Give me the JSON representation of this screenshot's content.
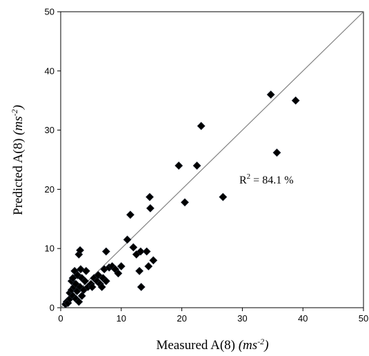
{
  "chart_data": {
    "type": "scatter",
    "title": "",
    "xlabel": {
      "main": "Measured A(8) ",
      "unit": "(ms",
      "exp": "-2",
      "close": ")"
    },
    "ylabel": {
      "main": "Predicted A(8) ",
      "unit": "(ms",
      "exp": "-2",
      "close": ")"
    },
    "xlim": [
      0,
      50
    ],
    "ylim": [
      0,
      50
    ],
    "xticks": [
      "0",
      "10",
      "20",
      "30",
      "40",
      "50"
    ],
    "yticks": [
      "0",
      "10",
      "20",
      "30",
      "40",
      "50"
    ],
    "grid": false,
    "marker": "diamond",
    "marker_color": "#000000",
    "reference_line": {
      "x": [
        0,
        50
      ],
      "y": [
        0,
        50
      ],
      "color": "#808080"
    },
    "annotation": {
      "prefix": "R",
      "sup": "2",
      "suffix": " = 84.1 %",
      "x": 29.5,
      "y": 21
    },
    "points": [
      [
        0.8,
        0.6
      ],
      [
        1.0,
        1.0
      ],
      [
        1.2,
        0.8
      ],
      [
        1.5,
        1.5
      ],
      [
        1.5,
        2.5
      ],
      [
        1.8,
        3.0
      ],
      [
        1.8,
        4.5
      ],
      [
        2.0,
        2.0
      ],
      [
        2.0,
        5.0
      ],
      [
        2.2,
        3.5
      ],
      [
        2.3,
        6.2
      ],
      [
        2.5,
        1.5
      ],
      [
        2.5,
        4.0
      ],
      [
        2.7,
        2.8
      ],
      [
        2.8,
        5.5
      ],
      [
        3.0,
        1.0
      ],
      [
        3.0,
        9.0
      ],
      [
        3.2,
        9.7
      ],
      [
        3.2,
        3.5
      ],
      [
        3.3,
        6.5
      ],
      [
        3.5,
        2.0
      ],
      [
        3.5,
        5.0
      ],
      [
        3.8,
        3.0
      ],
      [
        4.0,
        4.5
      ],
      [
        4.2,
        6.2
      ],
      [
        4.5,
        3.5
      ],
      [
        5.0,
        4.0
      ],
      [
        5.2,
        3.5
      ],
      [
        5.5,
        5.0
      ],
      [
        6.0,
        4.5
      ],
      [
        6.2,
        5.5
      ],
      [
        6.5,
        4.0
      ],
      [
        6.8,
        3.5
      ],
      [
        7.0,
        5.0
      ],
      [
        7.2,
        6.5
      ],
      [
        7.5,
        9.5
      ],
      [
        7.5,
        4.5
      ],
      [
        8.0,
        6.8
      ],
      [
        8.5,
        7.0
      ],
      [
        9.0,
        6.5
      ],
      [
        9.5,
        5.8
      ],
      [
        10.0,
        7.0
      ],
      [
        11.0,
        11.5
      ],
      [
        11.5,
        15.7
      ],
      [
        12.0,
        10.2
      ],
      [
        12.5,
        9.0
      ],
      [
        13.0,
        6.2
      ],
      [
        13.2,
        9.5
      ],
      [
        13.3,
        3.5
      ],
      [
        14.2,
        9.5
      ],
      [
        14.5,
        7.0
      ],
      [
        14.7,
        18.7
      ],
      [
        14.8,
        16.8
      ],
      [
        15.3,
        8.0
      ],
      [
        19.5,
        24.0
      ],
      [
        20.5,
        17.8
      ],
      [
        22.5,
        24.0
      ],
      [
        23.2,
        30.7
      ],
      [
        26.8,
        18.7
      ],
      [
        34.7,
        36.0
      ],
      [
        35.7,
        26.2
      ],
      [
        38.8,
        35.0
      ]
    ]
  }
}
